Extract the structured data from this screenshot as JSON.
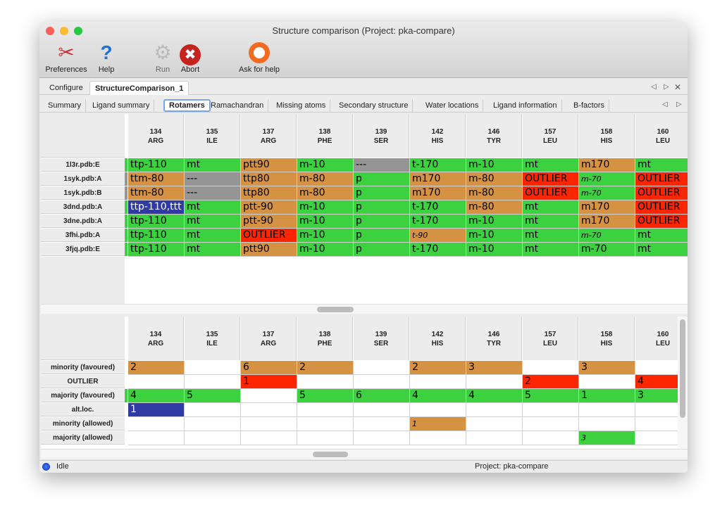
{
  "window": {
    "title": "Structure comparison (Project: pka-compare)"
  },
  "toolbar": [
    {
      "label": "Preferences",
      "icon": "tools-icon"
    },
    {
      "label": "Help",
      "icon": "help-icon"
    },
    {
      "label": "Run",
      "icon": "gear-icon"
    },
    {
      "label": "Abort",
      "icon": "abort-icon"
    },
    {
      "label": "Ask for help",
      "icon": "lifebuoy-icon"
    }
  ],
  "tabs": [
    {
      "label": "Configure"
    },
    {
      "label": "StructureComparison_1",
      "selected": true
    }
  ],
  "subtabs": [
    {
      "label": "Summary"
    },
    {
      "label": "Ligand summary"
    },
    {
      "label": "Rotamers",
      "selected": true
    },
    {
      "label": "Ramachandran"
    },
    {
      "label": "Missing atoms"
    },
    {
      "label": "Secondary structure"
    },
    {
      "label": "Water locations"
    },
    {
      "label": "Ligand information"
    },
    {
      "label": "B-factors"
    }
  ],
  "colors": {
    "favoured_majority": "#3bd13f",
    "minority": "#d69243",
    "outlier": "#fe2600",
    "missing": "#959595",
    "altloc": "#2f3aa3"
  },
  "columns": [
    {
      "num": "134",
      "res": "ARG"
    },
    {
      "num": "135",
      "res": "ILE"
    },
    {
      "num": "137",
      "res": "ARG"
    },
    {
      "num": "138",
      "res": "PHE"
    },
    {
      "num": "139",
      "res": "SER"
    },
    {
      "num": "142",
      "res": "HIS"
    },
    {
      "num": "146",
      "res": "TYR"
    },
    {
      "num": "157",
      "res": "LEU"
    },
    {
      "num": "158",
      "res": "HIS"
    },
    {
      "num": "160",
      "res": "LEU"
    }
  ],
  "rotamers": [
    {
      "label": "1l3r.pdb:E",
      "marker": "g",
      "cells": [
        [
          "ttp-110",
          "g"
        ],
        [
          "mt",
          "g"
        ],
        [
          "ptt90",
          "o"
        ],
        [
          "m-10",
          "g"
        ],
        [
          "---",
          "x"
        ],
        [
          "t-170",
          "g"
        ],
        [
          "m-10",
          "g"
        ],
        [
          "mt",
          "g"
        ],
        [
          "m170",
          "o"
        ],
        [
          "mt",
          "g"
        ]
      ]
    },
    {
      "label": "1syk.pdb:A",
      "marker": "x",
      "cells": [
        [
          "ttm-80",
          "o"
        ],
        [
          "---",
          "x"
        ],
        [
          "ttp80",
          "o"
        ],
        [
          "m-80",
          "o"
        ],
        [
          "p",
          "g"
        ],
        [
          "m170",
          "o"
        ],
        [
          "m-80",
          "o"
        ],
        [
          "OUTLIER",
          "r"
        ],
        [
          "m-70",
          "g i"
        ],
        [
          "OUTLIER",
          "r"
        ]
      ]
    },
    {
      "label": "1syk.pdb:B",
      "marker": "x",
      "cells": [
        [
          "ttm-80",
          "o"
        ],
        [
          "---",
          "x"
        ],
        [
          "ttp80",
          "o"
        ],
        [
          "m-80",
          "o"
        ],
        [
          "p",
          "g"
        ],
        [
          "m170",
          "o"
        ],
        [
          "m-80",
          "o"
        ],
        [
          "OUTLIER",
          "r"
        ],
        [
          "m-70",
          "g i"
        ],
        [
          "OUTLIER",
          "r"
        ]
      ]
    },
    {
      "label": "3dnd.pdb:A",
      "marker": "g",
      "cells": [
        [
          "ttp-110,ttt",
          "b"
        ],
        [
          "mt",
          "g"
        ],
        [
          "ptt-90",
          "o"
        ],
        [
          "m-10",
          "g"
        ],
        [
          "p",
          "g"
        ],
        [
          "t-170",
          "g"
        ],
        [
          "m-80",
          "o"
        ],
        [
          "mt",
          "g"
        ],
        [
          "m170",
          "o"
        ],
        [
          "OUTLIER",
          "r"
        ]
      ]
    },
    {
      "label": "3dne.pdb:A",
      "marker": "g",
      "cells": [
        [
          "ttp-110",
          "g"
        ],
        [
          "mt",
          "g"
        ],
        [
          "ptt-90",
          "o"
        ],
        [
          "m-10",
          "g"
        ],
        [
          "p",
          "g"
        ],
        [
          "t-170",
          "g"
        ],
        [
          "m-10",
          "g"
        ],
        [
          "mt",
          "g"
        ],
        [
          "m170",
          "o"
        ],
        [
          "OUTLIER",
          "r"
        ]
      ]
    },
    {
      "label": "3fhi.pdb:A",
      "marker": "g",
      "cells": [
        [
          "ttp-110",
          "g"
        ],
        [
          "mt",
          "g"
        ],
        [
          "OUTLIER",
          "r"
        ],
        [
          "m-10",
          "g"
        ],
        [
          "p",
          "g"
        ],
        [
          "t-90",
          "o i"
        ],
        [
          "m-10",
          "g"
        ],
        [
          "mt",
          "g"
        ],
        [
          "m-70",
          "g i"
        ],
        [
          "mt",
          "g"
        ]
      ]
    },
    {
      "label": "3fjq.pdb:E",
      "marker": "g",
      "cells": [
        [
          "ttp-110",
          "g"
        ],
        [
          "mt",
          "g"
        ],
        [
          "ptt90",
          "o"
        ],
        [
          "m-10",
          "g"
        ],
        [
          "p",
          "g"
        ],
        [
          "t-170",
          "g"
        ],
        [
          "m-10",
          "g"
        ],
        [
          "mt",
          "g"
        ],
        [
          "m-70",
          "g"
        ],
        [
          "mt",
          "g"
        ]
      ]
    }
  ],
  "summary": [
    {
      "label": "minority (favoured)",
      "cells": [
        [
          "2",
          "o"
        ],
        [
          "",
          "w"
        ],
        [
          "6",
          "o"
        ],
        [
          "2",
          "o"
        ],
        [
          "",
          "w"
        ],
        [
          "2",
          "o"
        ],
        [
          "3",
          "o"
        ],
        [
          "",
          "w"
        ],
        [
          "3",
          "o"
        ],
        [
          "",
          "w"
        ]
      ]
    },
    {
      "label": "OUTLIER",
      "cells": [
        [
          "",
          "w"
        ],
        [
          "",
          "w"
        ],
        [
          "1",
          "r"
        ],
        [
          "",
          "w"
        ],
        [
          "",
          "w"
        ],
        [
          "",
          "w"
        ],
        [
          "",
          "w"
        ],
        [
          "2",
          "r"
        ],
        [
          "",
          "w"
        ],
        [
          "4",
          "r"
        ]
      ]
    },
    {
      "label": "majority (favoured)",
      "marker": "g",
      "cells": [
        [
          "4",
          "g"
        ],
        [
          "5",
          "g"
        ],
        [
          "",
          "w"
        ],
        [
          "5",
          "g"
        ],
        [
          "6",
          "g"
        ],
        [
          "4",
          "g"
        ],
        [
          "4",
          "g"
        ],
        [
          "5",
          "g"
        ],
        [
          "1",
          "g"
        ],
        [
          "3",
          "g"
        ]
      ]
    },
    {
      "label": "alt.loc.",
      "cells": [
        [
          "1",
          "b"
        ],
        [
          "",
          "w"
        ],
        [
          "",
          "w"
        ],
        [
          "",
          "w"
        ],
        [
          "",
          "w"
        ],
        [
          "",
          "w"
        ],
        [
          "",
          "w"
        ],
        [
          "",
          "w"
        ],
        [
          "",
          "w"
        ],
        [
          "",
          "w"
        ]
      ]
    },
    {
      "label": "minority (allowed)",
      "cells": [
        [
          "",
          "w"
        ],
        [
          "",
          "w"
        ],
        [
          "",
          "w"
        ],
        [
          "",
          "w"
        ],
        [
          "",
          "w"
        ],
        [
          "1",
          "o i"
        ],
        [
          "",
          "w"
        ],
        [
          "",
          "w"
        ],
        [
          "",
          "w"
        ],
        [
          "",
          "w"
        ]
      ]
    },
    {
      "label": "majority (allowed)",
      "cells": [
        [
          "",
          "w"
        ],
        [
          "",
          "w"
        ],
        [
          "",
          "w"
        ],
        [
          "",
          "w"
        ],
        [
          "",
          "w"
        ],
        [
          "",
          "w"
        ],
        [
          "",
          "w"
        ],
        [
          "",
          "w"
        ],
        [
          "3",
          "g i"
        ],
        [
          "",
          "w"
        ]
      ]
    }
  ],
  "status": {
    "state": "Idle",
    "project": "Project: pka-compare"
  }
}
